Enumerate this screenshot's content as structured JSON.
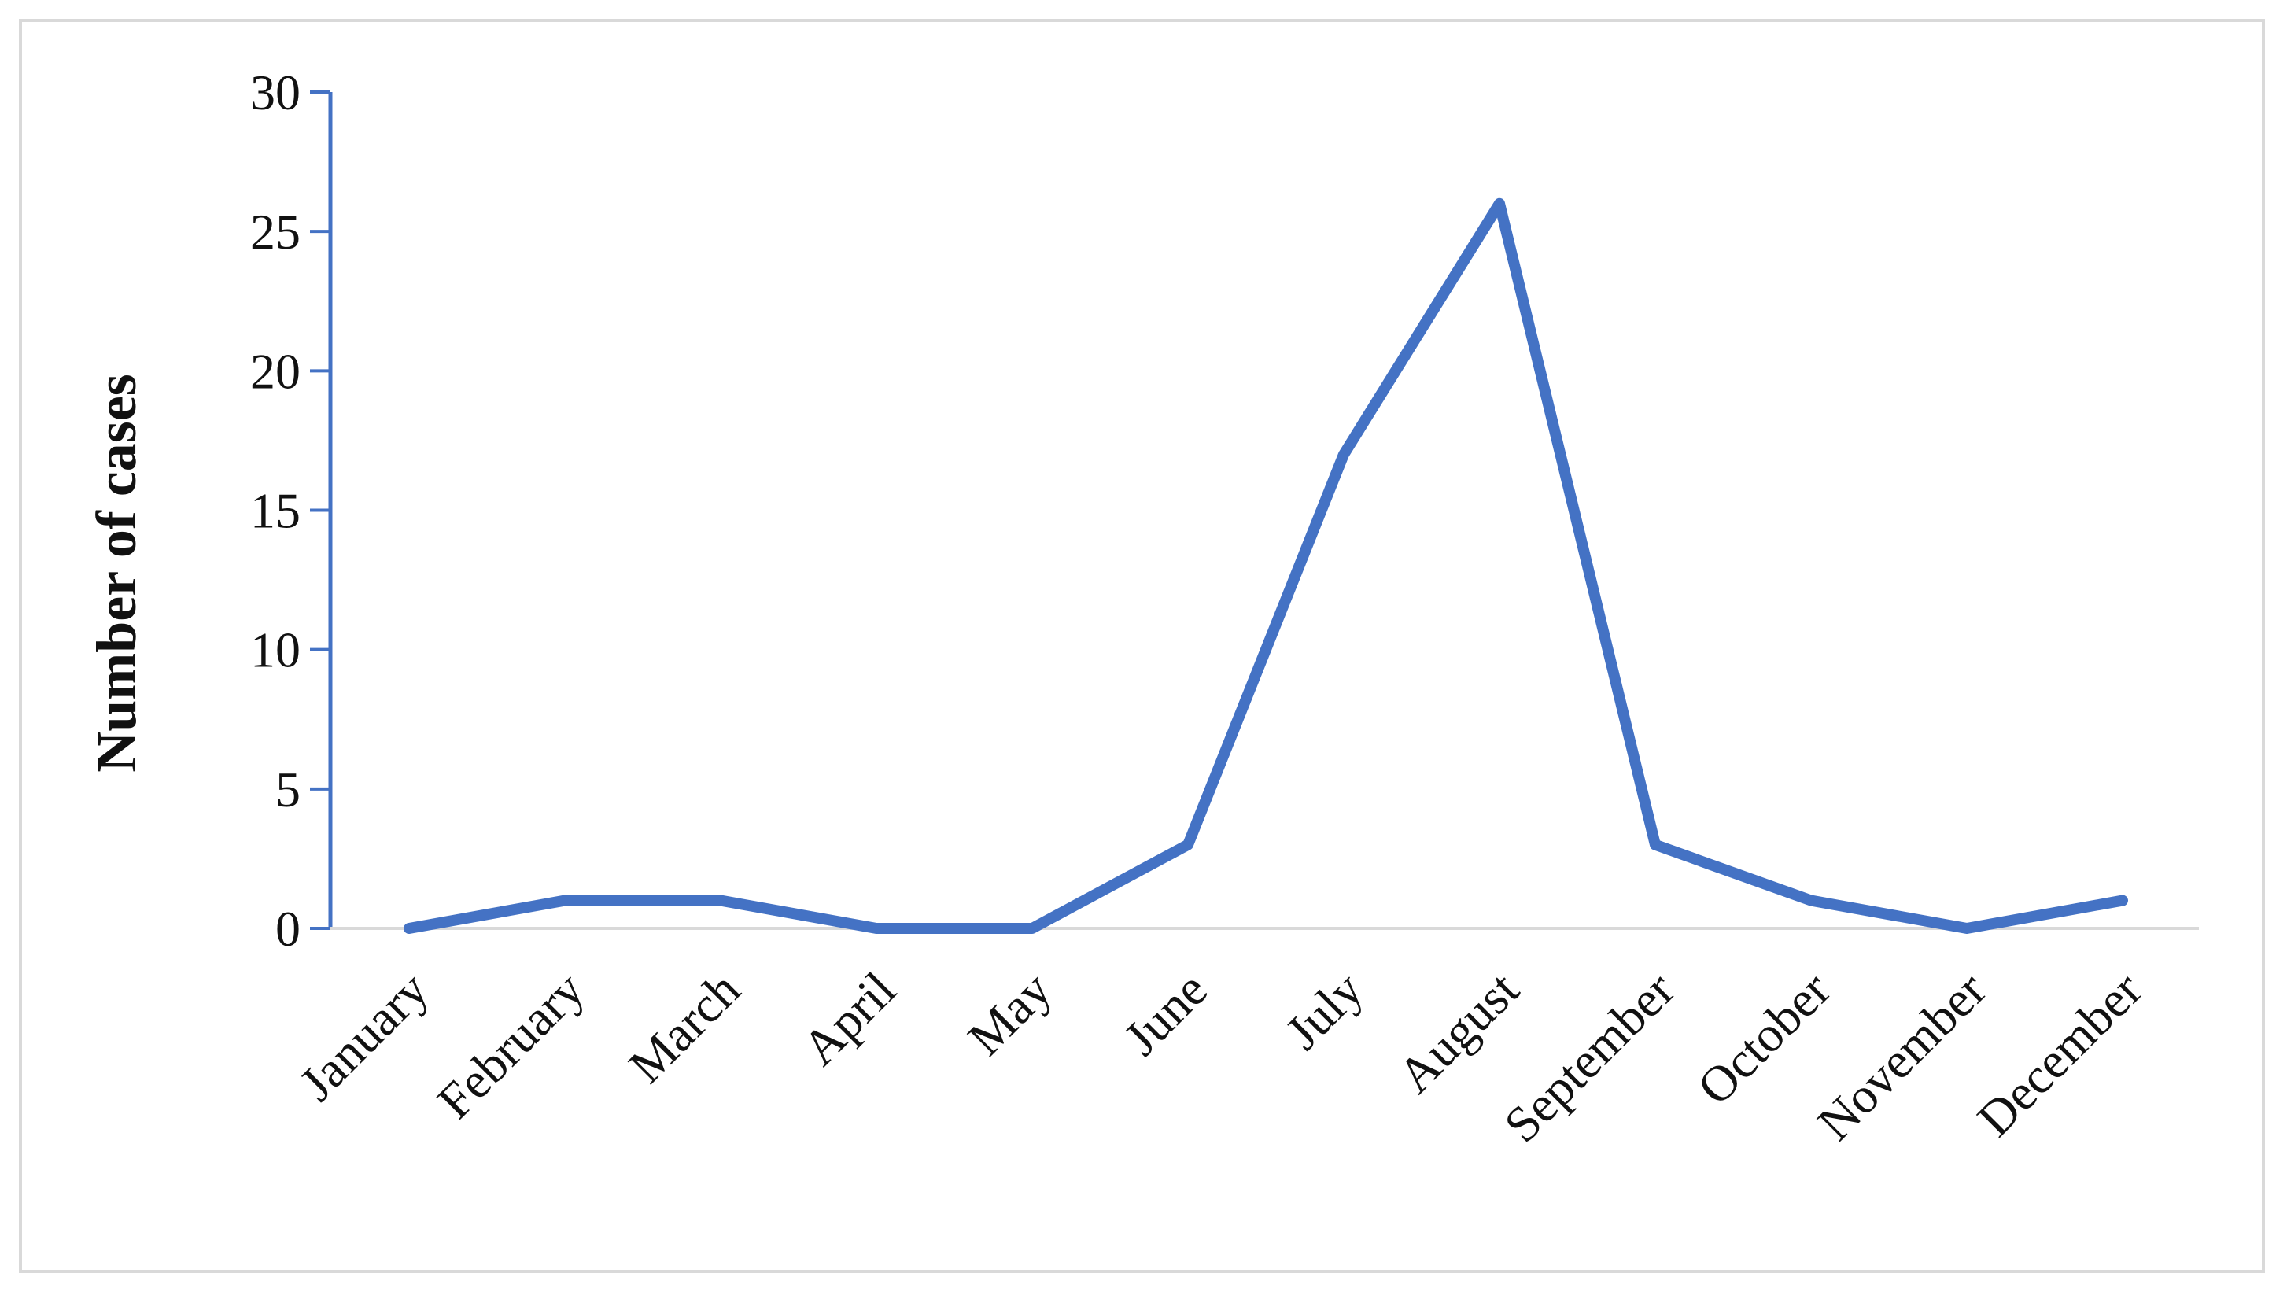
{
  "chart_data": {
    "type": "line",
    "title": "",
    "xlabel": "",
    "ylabel": "Number of cases",
    "categories": [
      "January",
      "February",
      "March",
      "April",
      "May",
      "June",
      "July",
      "August",
      "September",
      "October",
      "November",
      "December"
    ],
    "series": [
      {
        "values": [
          0,
          1,
          1,
          0,
          0,
          3,
          17,
          26,
          3,
          1,
          0,
          1
        ]
      }
    ],
    "ylim": [
      0,
      30
    ],
    "yticks": [
      0,
      5,
      10,
      15,
      20,
      25,
      30
    ],
    "grid": false,
    "legend": "none",
    "colors": {
      "line": "#4472c4",
      "y_axis": "#4472c4",
      "x_axis": "#d9d9d9",
      "frame": "#d9d9d9",
      "text": "#111111"
    }
  }
}
